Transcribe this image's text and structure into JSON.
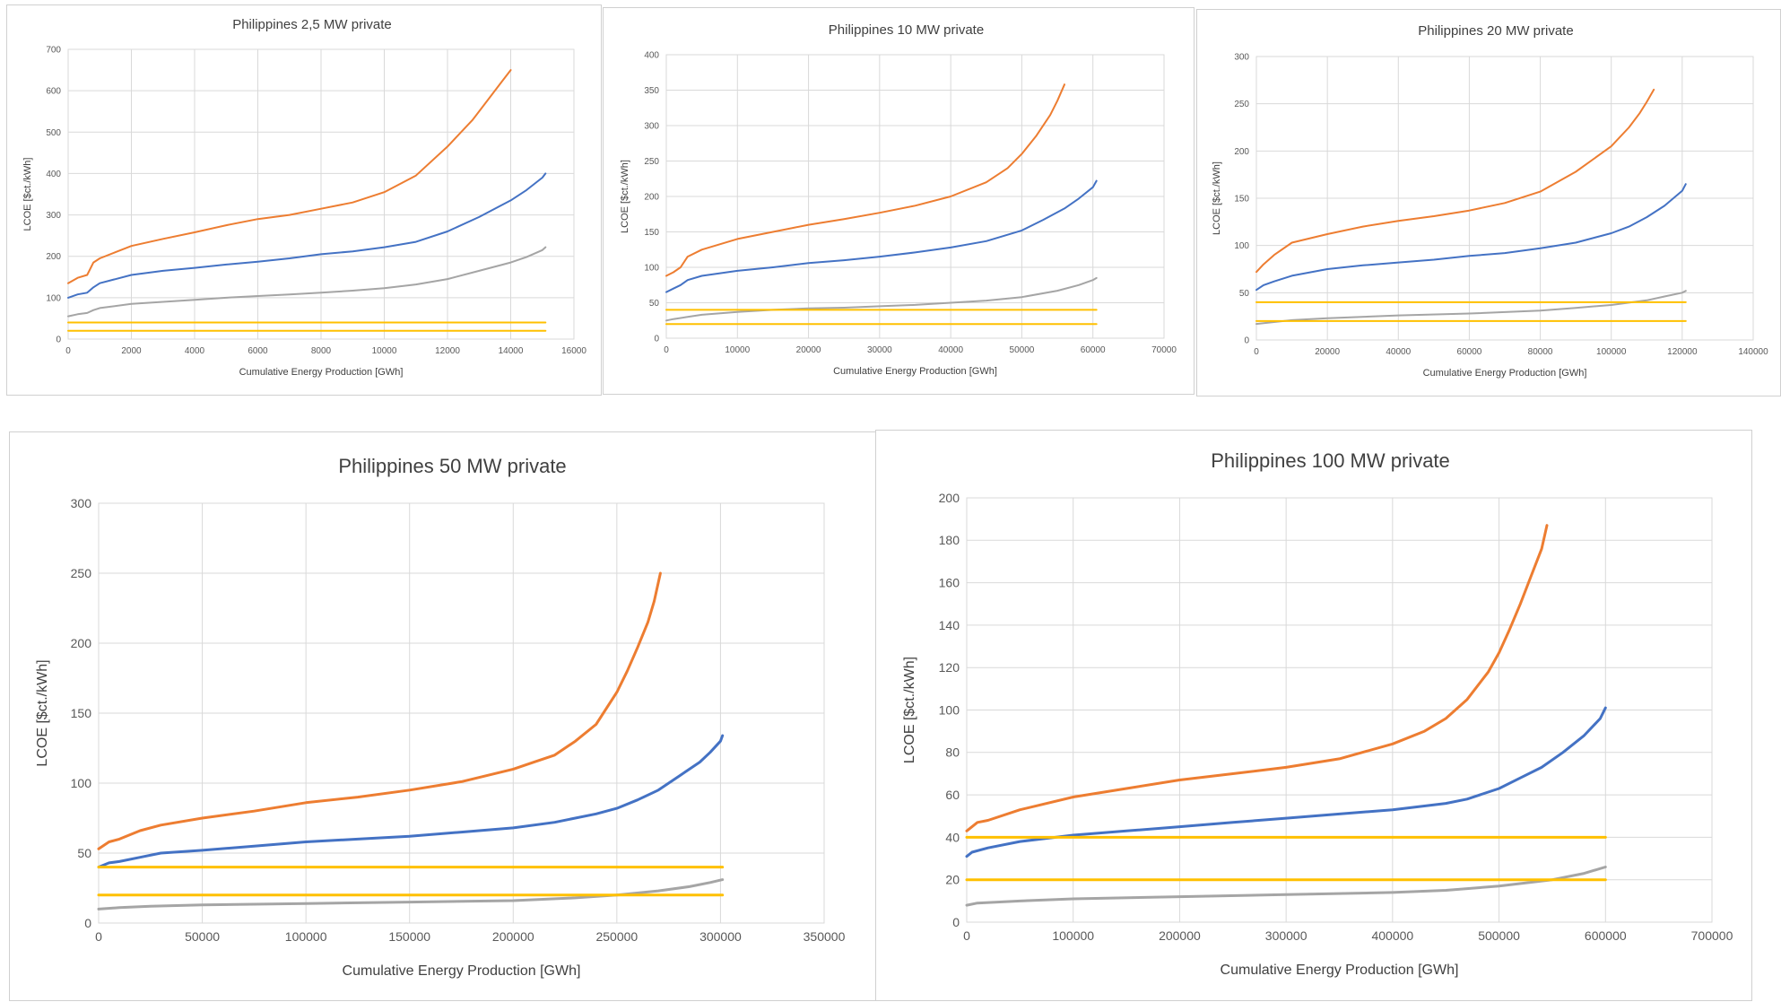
{
  "chart_data": [
    {
      "type": "line",
      "title": "Philippines 2,5 MW private",
      "xlabel": "Cumulative Energy Production [GWh]",
      "ylabel": "LCOE [$ct./kWh]",
      "xlim": [
        0,
        16000
      ],
      "ylim": [
        0,
        700
      ],
      "xticks": [
        0,
        2000,
        4000,
        6000,
        8000,
        10000,
        12000,
        14000,
        16000
      ],
      "yticks": [
        0,
        100,
        200,
        300,
        400,
        500,
        600,
        700
      ],
      "grid": true,
      "series": [
        {
          "color": "#ED7D31",
          "x": [
            0,
            300,
            600,
            800,
            1000,
            1500,
            2000,
            3000,
            4000,
            5000,
            6000,
            7000,
            8000,
            9000,
            10000,
            11000,
            12000,
            12800,
            13300,
            13700,
            14000
          ],
          "y": [
            135,
            148,
            155,
            185,
            195,
            210,
            225,
            242,
            258,
            275,
            290,
            300,
            315,
            330,
            355,
            395,
            465,
            530,
            580,
            620,
            650
          ]
        },
        {
          "color": "#4472C4",
          "x": [
            0,
            300,
            600,
            800,
            1000,
            2000,
            3000,
            4000,
            5000,
            6000,
            7000,
            8000,
            9000,
            10000,
            11000,
            12000,
            13000,
            14000,
            14500,
            15000,
            15100
          ],
          "y": [
            100,
            108,
            112,
            125,
            135,
            155,
            165,
            172,
            180,
            187,
            195,
            205,
            212,
            222,
            235,
            260,
            295,
            335,
            360,
            390,
            400
          ]
        },
        {
          "color": "#A5A5A5",
          "x": [
            0,
            300,
            600,
            800,
            1000,
            2000,
            3000,
            4000,
            5000,
            6000,
            7000,
            8000,
            9000,
            10000,
            11000,
            12000,
            13000,
            14000,
            14500,
            15000,
            15100
          ],
          "y": [
            55,
            60,
            63,
            70,
            75,
            85,
            90,
            95,
            100,
            104,
            108,
            112,
            117,
            123,
            132,
            145,
            165,
            185,
            198,
            215,
            222
          ]
        },
        {
          "color": "#FFC000",
          "x": [
            0,
            15100
          ],
          "y": [
            40,
            40
          ]
        },
        {
          "color": "#FFC000",
          "x": [
            0,
            15100
          ],
          "y": [
            20,
            20
          ]
        }
      ]
    },
    {
      "type": "line",
      "title": "Philippines 10 MW private",
      "xlabel": "Cumulative Energy Production [GWh]",
      "ylabel": "LCOE [$ct./kWh]",
      "xlim": [
        0,
        70000
      ],
      "ylim": [
        0,
        400
      ],
      "xticks": [
        0,
        10000,
        20000,
        30000,
        40000,
        50000,
        60000,
        70000
      ],
      "yticks": [
        0,
        50,
        100,
        150,
        200,
        250,
        300,
        350,
        400
      ],
      "grid": true,
      "series": [
        {
          "color": "#ED7D31",
          "x": [
            0,
            1000,
            2000,
            3000,
            5000,
            10000,
            15000,
            20000,
            25000,
            30000,
            35000,
            40000,
            45000,
            48000,
            50000,
            52000,
            54000,
            55000,
            56000
          ],
          "y": [
            88,
            93,
            100,
            115,
            125,
            140,
            150,
            160,
            168,
            177,
            187,
            200,
            220,
            240,
            260,
            285,
            315,
            335,
            358
          ]
        },
        {
          "color": "#4472C4",
          "x": [
            0,
            1000,
            2000,
            3000,
            5000,
            10000,
            15000,
            20000,
            25000,
            30000,
            35000,
            40000,
            45000,
            50000,
            53000,
            56000,
            58000,
            60000,
            60500
          ],
          "y": [
            65,
            70,
            75,
            82,
            88,
            95,
            100,
            106,
            110,
            115,
            121,
            128,
            137,
            152,
            167,
            183,
            197,
            213,
            222
          ]
        },
        {
          "color": "#A5A5A5",
          "x": [
            0,
            1000,
            3000,
            5000,
            10000,
            15000,
            20000,
            25000,
            30000,
            35000,
            40000,
            45000,
            50000,
            55000,
            58000,
            60000,
            60500
          ],
          "y": [
            25,
            27,
            30,
            33,
            37,
            40,
            42,
            43,
            45,
            47,
            50,
            53,
            58,
            67,
            75,
            82,
            85
          ]
        },
        {
          "color": "#FFC000",
          "x": [
            0,
            60500
          ],
          "y": [
            40,
            40
          ]
        },
        {
          "color": "#FFC000",
          "x": [
            0,
            60500
          ],
          "y": [
            20,
            20
          ]
        }
      ]
    },
    {
      "type": "line",
      "title": "Philippines 20 MW private",
      "xlabel": "Cumulative Energy Production [GWh]",
      "ylabel": "LCOE [$ct./kWh]",
      "xlim": [
        0,
        140000
      ],
      "ylim": [
        0,
        300
      ],
      "xticks": [
        0,
        20000,
        40000,
        60000,
        80000,
        100000,
        120000,
        140000
      ],
      "yticks": [
        0,
        50,
        100,
        150,
        200,
        250,
        300
      ],
      "grid": true,
      "series": [
        {
          "color": "#ED7D31",
          "x": [
            0,
            2000,
            5000,
            10000,
            20000,
            30000,
            40000,
            50000,
            60000,
            70000,
            80000,
            90000,
            100000,
            105000,
            108000,
            110000,
            112000
          ],
          "y": [
            72,
            80,
            90,
            103,
            112,
            120,
            126,
            131,
            137,
            145,
            157,
            178,
            205,
            225,
            240,
            252,
            265
          ]
        },
        {
          "color": "#4472C4",
          "x": [
            0,
            2000,
            5000,
            10000,
            20000,
            30000,
            40000,
            50000,
            60000,
            70000,
            80000,
            90000,
            100000,
            105000,
            110000,
            115000,
            120000,
            121000
          ],
          "y": [
            53,
            58,
            62,
            68,
            75,
            79,
            82,
            85,
            89,
            92,
            97,
            103,
            113,
            120,
            130,
            142,
            158,
            165
          ]
        },
        {
          "color": "#A5A5A5",
          "x": [
            0,
            5000,
            10000,
            20000,
            40000,
            60000,
            80000,
            90000,
            100000,
            110000,
            115000,
            120000,
            121000
          ],
          "y": [
            17,
            19,
            21,
            23,
            26,
            28,
            31,
            34,
            37,
            42,
            46,
            50,
            52
          ]
        },
        {
          "color": "#FFC000",
          "x": [
            0,
            121000
          ],
          "y": [
            40,
            40
          ]
        },
        {
          "color": "#FFC000",
          "x": [
            0,
            121000
          ],
          "y": [
            20,
            20
          ]
        }
      ]
    },
    {
      "type": "line",
      "title": "Philippines 50 MW private",
      "xlabel": "Cumulative Energy Production [GWh]",
      "ylabel": "LCOE [$ct./kWh]",
      "xlim": [
        0,
        350000
      ],
      "ylim": [
        0,
        300
      ],
      "xticks": [
        0,
        50000,
        100000,
        150000,
        200000,
        250000,
        300000,
        350000
      ],
      "yticks": [
        0,
        50,
        100,
        150,
        200,
        250,
        300
      ],
      "grid": true,
      "series": [
        {
          "color": "#ED7D31",
          "x": [
            0,
            5000,
            10000,
            20000,
            30000,
            50000,
            75000,
            100000,
            125000,
            150000,
            175000,
            200000,
            210000,
            220000,
            230000,
            240000,
            250000,
            255000,
            260000,
            265000,
            268000,
            271000
          ],
          "y": [
            53,
            58,
            60,
            66,
            70,
            75,
            80,
            86,
            90,
            95,
            101,
            110,
            115,
            120,
            130,
            142,
            165,
            180,
            197,
            215,
            230,
            250
          ]
        },
        {
          "color": "#4472C4",
          "x": [
            0,
            5000,
            10000,
            20000,
            30000,
            50000,
            75000,
            100000,
            125000,
            150000,
            175000,
            200000,
            220000,
            240000,
            250000,
            260000,
            270000,
            280000,
            290000,
            295000,
            300000,
            301000
          ],
          "y": [
            40,
            43,
            44,
            47,
            50,
            52,
            55,
            58,
            60,
            62,
            65,
            68,
            72,
            78,
            82,
            88,
            95,
            105,
            115,
            122,
            130,
            134
          ]
        },
        {
          "color": "#A5A5A5",
          "x": [
            0,
            10000,
            25000,
            50000,
            100000,
            150000,
            200000,
            230000,
            250000,
            270000,
            285000,
            295000,
            301000
          ],
          "y": [
            10,
            11,
            12,
            13,
            14,
            15,
            16,
            18,
            20,
            23,
            26,
            29,
            31
          ]
        },
        {
          "color": "#FFC000",
          "x": [
            0,
            301000
          ],
          "y": [
            40,
            40
          ]
        },
        {
          "color": "#FFC000",
          "x": [
            0,
            301000
          ],
          "y": [
            20,
            20
          ]
        }
      ]
    },
    {
      "type": "line",
      "title": "Philippines 100 MW private",
      "xlabel": "Cumulative Energy Production [GWh]",
      "ylabel": "LCOE [$ct./kWh]",
      "xlim": [
        0,
        700000
      ],
      "ylim": [
        0,
        200
      ],
      "xticks": [
        0,
        100000,
        200000,
        300000,
        400000,
        500000,
        600000,
        700000
      ],
      "yticks": [
        0,
        20,
        40,
        60,
        80,
        100,
        120,
        140,
        160,
        180,
        200
      ],
      "grid": true,
      "series": [
        {
          "color": "#ED7D31",
          "x": [
            0,
            10000,
            20000,
            50000,
            100000,
            150000,
            200000,
            250000,
            300000,
            350000,
            400000,
            430000,
            450000,
            470000,
            490000,
            500000,
            510000,
            520000,
            530000,
            540000,
            545000
          ],
          "y": [
            43,
            47,
            48,
            53,
            59,
            63,
            67,
            70,
            73,
            77,
            84,
            90,
            96,
            105,
            118,
            127,
            138,
            150,
            163,
            176,
            187
          ]
        },
        {
          "color": "#4472C4",
          "x": [
            0,
            5000,
            20000,
            50000,
            100000,
            150000,
            200000,
            250000,
            300000,
            350000,
            400000,
            450000,
            470000,
            500000,
            520000,
            540000,
            560000,
            580000,
            595000,
            600000
          ],
          "y": [
            31,
            33,
            35,
            38,
            41,
            43,
            45,
            47,
            49,
            51,
            53,
            56,
            58,
            63,
            68,
            73,
            80,
            88,
            96,
            101
          ]
        },
        {
          "color": "#A5A5A5",
          "x": [
            0,
            10000,
            50000,
            100000,
            200000,
            300000,
            400000,
            450000,
            500000,
            550000,
            580000,
            600000
          ],
          "y": [
            8,
            9,
            10,
            11,
            12,
            13,
            14,
            15,
            17,
            20,
            23,
            26
          ]
        },
        {
          "color": "#FFC000",
          "x": [
            0,
            600000
          ],
          "y": [
            40,
            40
          ]
        },
        {
          "color": "#FFC000",
          "x": [
            0,
            600000
          ],
          "y": [
            20,
            20
          ]
        }
      ]
    }
  ]
}
